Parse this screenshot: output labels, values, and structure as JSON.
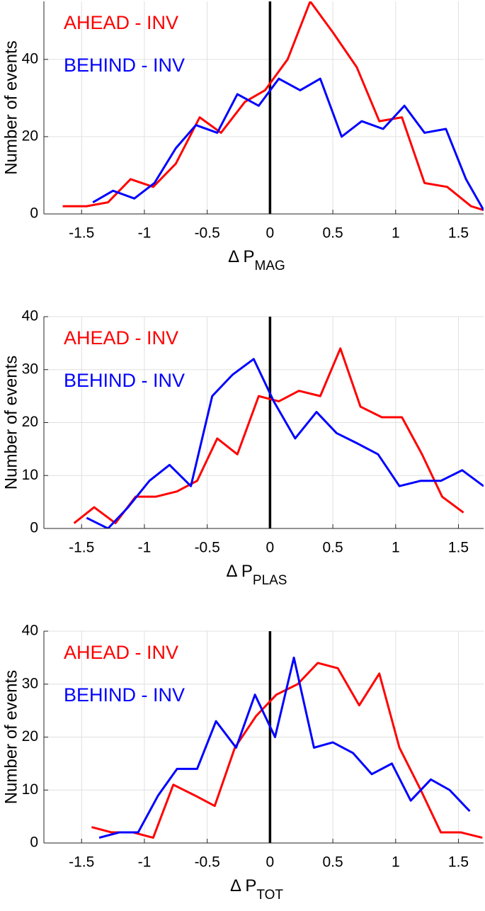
{
  "chart_data": [
    {
      "type": "line",
      "xlabel": "Δ P",
      "xlabel_sub": "MAG",
      "ylabel": "Number of events",
      "xlim": [
        -1.8,
        1.7
      ],
      "ylim": [
        0,
        55
      ],
      "xticks": [
        -1.5,
        -1,
        -0.5,
        0,
        0.5,
        1,
        1.5
      ],
      "yticks": [
        0,
        20,
        40
      ],
      "grid": true,
      "vline": 0,
      "legend": "upper left",
      "series": [
        {
          "name": "AHEAD - INV",
          "color": "#ff0000",
          "x": [
            -1.65,
            -1.46,
            -1.29,
            -1.11,
            -0.93,
            -0.75,
            -0.56,
            -0.39,
            -0.2,
            -0.04,
            0.14,
            0.32,
            0.5,
            0.69,
            0.87,
            1.05,
            1.23,
            1.41,
            1.6,
            1.7
          ],
          "values": [
            2,
            2,
            3,
            9,
            7,
            13,
            25,
            21,
            29,
            32,
            40,
            55,
            47,
            38,
            24,
            25,
            8,
            7,
            2,
            1
          ]
        },
        {
          "name": "BEHIND - INV",
          "color": "#0000ff",
          "x": [
            -1.41,
            -1.25,
            -1.08,
            -0.92,
            -0.75,
            -0.59,
            -0.42,
            -0.26,
            -0.09,
            0.07,
            0.24,
            0.4,
            0.57,
            0.73,
            0.9,
            1.07,
            1.23,
            1.4,
            1.56,
            1.7
          ],
          "values": [
            3,
            6,
            4,
            8,
            17,
            23,
            21,
            31,
            28,
            35,
            32,
            35,
            20,
            24,
            22,
            28,
            21,
            22,
            9,
            1
          ]
        }
      ]
    },
    {
      "type": "line",
      "xlabel": "Δ P",
      "xlabel_sub": "PLAS",
      "ylabel": "Number of events",
      "xlim": [
        -1.8,
        1.7
      ],
      "ylim": [
        0,
        40
      ],
      "xticks": [
        -1.5,
        -1,
        -0.5,
        0,
        0.5,
        1,
        1.5
      ],
      "yticks": [
        0,
        10,
        20,
        30,
        40
      ],
      "grid": true,
      "vline": 0,
      "legend": "upper left",
      "series": [
        {
          "name": "AHEAD - INV",
          "color": "#ff0000",
          "x": [
            -1.56,
            -1.4,
            -1.23,
            -1.07,
            -0.91,
            -0.74,
            -0.58,
            -0.42,
            -0.26,
            -0.09,
            0.07,
            0.23,
            0.4,
            0.56,
            0.72,
            0.89,
            1.05,
            1.21,
            1.37,
            1.54
          ],
          "values": [
            1,
            4,
            1,
            6,
            6,
            7,
            9,
            17,
            14,
            25,
            24,
            26,
            25,
            34,
            23,
            21,
            21,
            14,
            6,
            3
          ]
        },
        {
          "name": "BEHIND - INV",
          "color": "#0000ff",
          "x": [
            -1.46,
            -1.29,
            -1.13,
            -0.96,
            -0.8,
            -0.63,
            -0.46,
            -0.3,
            -0.13,
            0.03,
            0.2,
            0.37,
            0.53,
            0.7,
            0.86,
            1.03,
            1.2,
            1.36,
            1.53,
            1.7
          ],
          "values": [
            2,
            0,
            4,
            9,
            12,
            8,
            25,
            29,
            32,
            24,
            17,
            22,
            18,
            16,
            14,
            8,
            9,
            9,
            11,
            8
          ]
        }
      ]
    },
    {
      "type": "line",
      "xlabel": "Δ P",
      "xlabel_sub": "TOT",
      "ylabel": "Number of events",
      "xlim": [
        -1.8,
        1.7
      ],
      "ylim": [
        0,
        40
      ],
      "xticks": [
        -1.5,
        -1,
        -0.5,
        0,
        0.5,
        1,
        1.5
      ],
      "yticks": [
        0,
        10,
        20,
        30,
        40
      ],
      "grid": true,
      "vline": 0,
      "legend": "upper left",
      "series": [
        {
          "name": "AHEAD - INV",
          "color": "#ff0000",
          "x": [
            -1.42,
            -1.26,
            -1.09,
            -0.93,
            -0.77,
            -0.6,
            -0.44,
            -0.28,
            -0.11,
            0.05,
            0.22,
            0.38,
            0.54,
            0.71,
            0.87,
            1.03,
            1.2,
            1.36,
            1.52,
            1.69
          ],
          "values": [
            3,
            2,
            2,
            1,
            11,
            9,
            7,
            18,
            24,
            28,
            30,
            34,
            33,
            26,
            32,
            18,
            10,
            2,
            2,
            1
          ]
        },
        {
          "name": "BEHIND - INV",
          "color": "#0000ff",
          "x": [
            -1.36,
            -1.2,
            -1.05,
            -0.89,
            -0.74,
            -0.58,
            -0.43,
            -0.27,
            -0.12,
            0.04,
            0.19,
            0.35,
            0.5,
            0.66,
            0.81,
            0.97,
            1.12,
            1.28,
            1.43,
            1.59
          ],
          "values": [
            1,
            2,
            2,
            9,
            14,
            14,
            23,
            18,
            28,
            20,
            35,
            18,
            19,
            17,
            13,
            15,
            8,
            12,
            10,
            6
          ]
        }
      ]
    }
  ]
}
